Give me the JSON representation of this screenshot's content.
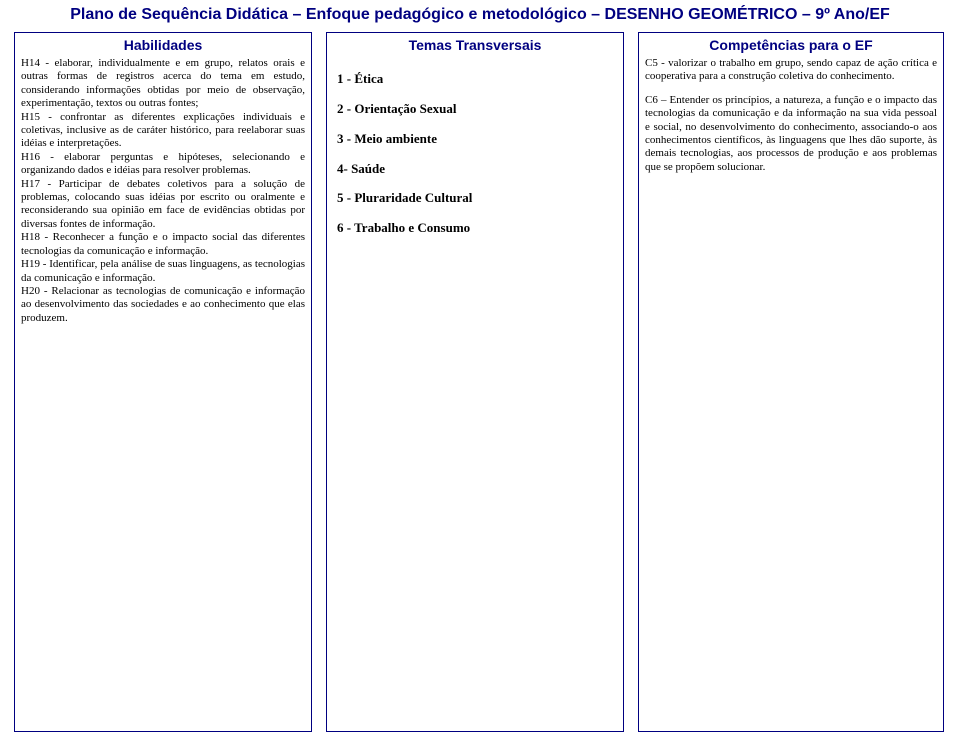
{
  "title": "Plano de Sequência Didática – Enfoque pedagógico e metodológico – DESENHO GEOMÉTRICO – 9º Ano/EF",
  "left": {
    "header": "Habilidades",
    "p1": "H14 - elaborar, individualmente e em grupo, relatos orais e outras formas de registros acerca do tema em estudo, considerando informações obtidas por meio de observação, experimentação, textos ou outras fontes;",
    "p2": "H15 - confrontar as diferentes explicações individuais e coletivas, inclusive as de caráter histórico, para reelaborar suas idéias e interpretações.",
    "p3": "H16 - elaborar perguntas e hipóteses, selecionando e organizando dados e idéias para resolver problemas.",
    "p4": "H17 - Participar de debates coletivos para a solução de problemas, colocando suas idéias por escrito ou oralmente e reconsiderando sua opinião em face de evidências obtidas por diversas fontes de informação.",
    "p5": "H18 - Reconhecer a função e o impacto social das diferentes tecnologias da comunicação e informação.",
    "p6": "H19 - Identificar, pela análise de suas linguagens, as tecnologias da comunicação e informação.",
    "p7": "H20 - Relacionar as tecnologias de comunicação e informação ao desenvolvimento das sociedades e ao conhecimento que elas produzem."
  },
  "mid": {
    "header": "Temas Transversais",
    "t1": "1 - Ética",
    "t2": "2 - Orientação Sexual",
    "t3": "3 - Meio ambiente",
    "t4": "4- Saúde",
    "t5": "5 - Pluraridade Cultural",
    "t6": "6 - Trabalho e Consumo"
  },
  "right": {
    "header": "Competências para o EF",
    "p1": "C5 - valorizar o trabalho em grupo, sendo capaz de ação crítica e cooperativa para a construção coletiva do conhecimento.",
    "p2": "C6 – Entender os princípios, a natureza, a função e o impacto das tecnologias da comunicação e da informação na sua vida pessoal e social, no desenvolvimento do conhecimento, associando-o aos conhecimentos científicos, às linguagens que lhes dão suporte, às demais tecnologias, aos processos de produção e aos problemas que se propõem solucionar."
  }
}
